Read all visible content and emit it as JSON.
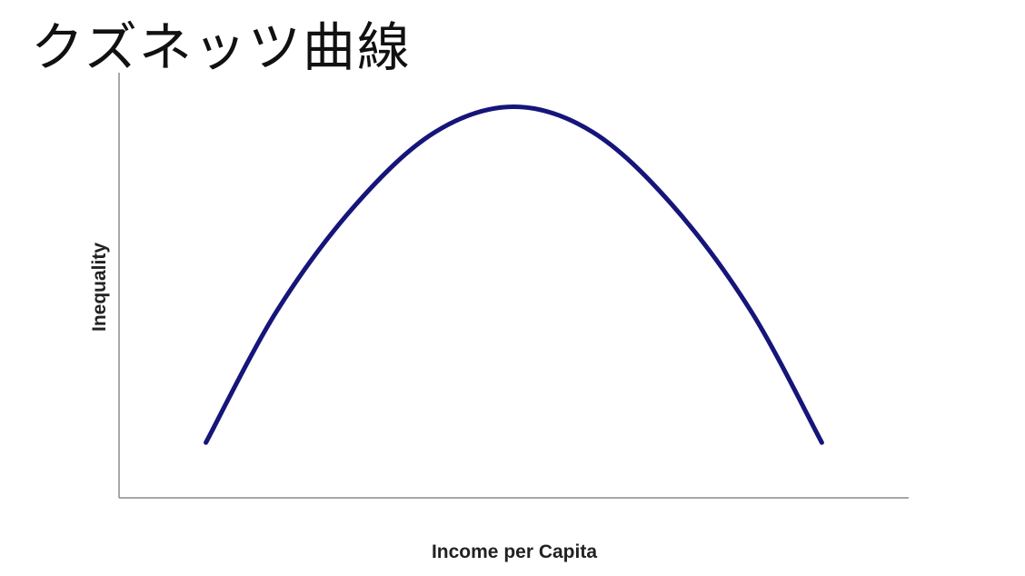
{
  "title": "クズネッツ曲線",
  "colors": {
    "curve": "#15157a",
    "axis": "#8a8a8a",
    "text": "#222222"
  },
  "chart_data": {
    "type": "line",
    "title": "クズネッツ曲線",
    "xlabel": "Income per Capita",
    "ylabel": "Inequality",
    "grid": false,
    "legend": "none",
    "xlim": [
      0,
      10
    ],
    "ylim": [
      0,
      10
    ],
    "series": [
      {
        "x": [
          1.1,
          2,
          3,
          4,
          5,
          6,
          7,
          8,
          8.9
        ],
        "values": [
          1.3,
          4.4,
          6.9,
          8.6,
          9.2,
          8.6,
          6.9,
          4.4,
          1.3
        ]
      }
    ]
  }
}
